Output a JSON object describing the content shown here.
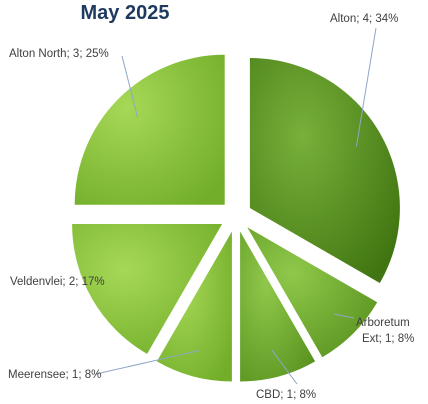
{
  "chart_data": {
    "type": "pie",
    "title": "May 2025",
    "total": 12,
    "slices": [
      {
        "name": "Alton",
        "value": 4,
        "percent": "34%",
        "label": "Alton; 4; 34%"
      },
      {
        "name": "Arboretum Ext",
        "value": 1,
        "percent": "8%",
        "label_lines": [
          "Arboretum",
          "Ext; 1; 8%"
        ]
      },
      {
        "name": "CBD",
        "value": 1,
        "percent": "8%",
        "label": "CBD; 1; 8%"
      },
      {
        "name": "Meerensee",
        "value": 1,
        "percent": "8%",
        "label": "Meerensee; 1; 8%"
      },
      {
        "name": "Veldenvlei",
        "value": 2,
        "percent": "17%",
        "label": "Veldenvlei; 2; 17%"
      },
      {
        "name": "Alton North",
        "value": 3,
        "percent": "25%",
        "label": "Alton North; 3; 25%"
      }
    ],
    "colors": {
      "dark_slice": "#4e8a1a",
      "mid_slice": "#6aa42a",
      "light_slice": "#8cc63c"
    },
    "legend": "none",
    "exploded": true
  }
}
